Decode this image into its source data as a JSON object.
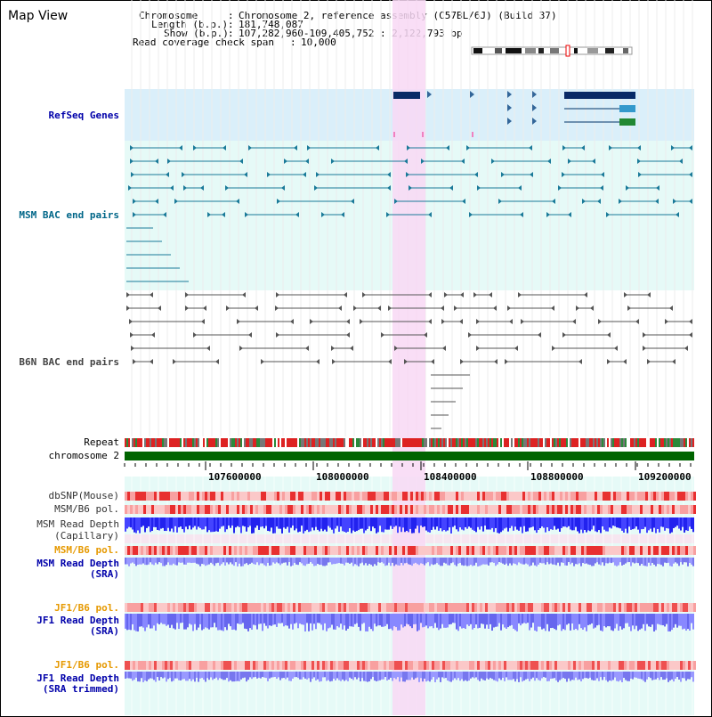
{
  "title": "Map View",
  "info": {
    "chromosome_key": "Chromosome",
    "chromosome_val": "Chromosome 2, reference assembly (C57BL/6J) (Build 37)",
    "length_key": "Length (b.p.)",
    "length_val": "181,748,087",
    "show_key": "Show (b.p.)",
    "show_val": "107,282,960-109,405,752 : 2,122,793 bp",
    "coverage_key": "Read coverage check span",
    "coverage_val": "10,000"
  },
  "tracks": {
    "refseq": "RefSeq Genes",
    "msm_bac": "MSM BAC end pairs",
    "b6n_bac": "B6N BAC end pairs",
    "repeat": "Repeat",
    "chromosome": "chromosome 2",
    "dbsnp": "dbSNP(Mouse)",
    "msm_b6_pol_1": "MSM/B6 pol.",
    "msm_depth_cap_1": "MSM Read Depth",
    "msm_depth_cap_2": "(Capillary)",
    "msm_b6_pol_2": "MSM/B6 pol.",
    "msm_depth_sra_1": "MSM Read Depth",
    "msm_depth_sra_2": "(SRA)",
    "jf1_pol_1": "JF1/B6 pol.",
    "jf1_depth_1": "JF1 Read Depth",
    "jf1_depth_2": "(SRA)",
    "jf1_pol_2": "JF1/B6 pol.",
    "jf1_trim_1": "JF1 Read Depth",
    "jf1_trim_2": "(SRA trimmed)"
  },
  "axis_ticks": [
    "107600000",
    "108000000",
    "108400000",
    "108800000",
    "109200000"
  ],
  "colors": {
    "refseq_bg": "#daeffa",
    "msm_bg": "#e6faf7",
    "highlight": "#f8d8f4",
    "green": "#006400",
    "depth_blue": "#2222ee",
    "orange": "#e69900",
    "navy": "#0000aa",
    "teal": "#006688"
  }
}
